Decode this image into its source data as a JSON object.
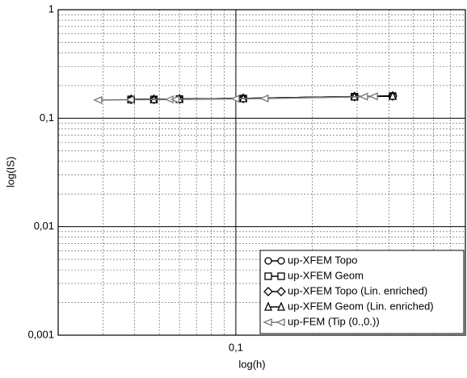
{
  "chart_data": {
    "type": "line",
    "x_label": "log(h)",
    "y_label": "log(IS)",
    "log_x": true,
    "log_y": true,
    "grid": true,
    "minor_grid": true,
    "legend": "lower right",
    "xlim": [
      0.02,
      0.8
    ],
    "ylim": [
      0.001,
      1
    ],
    "xticks": [
      {
        "value": 0.1,
        "label": "0,1"
      }
    ],
    "yticks": [
      {
        "value": 0.001,
        "label": "0,001"
      },
      {
        "value": 0.01,
        "label": "0,01"
      },
      {
        "value": 0.1,
        "label": "0,1"
      },
      1
    ],
    "series": [
      {
        "name": "up-XFEM Topo",
        "color": "#000000",
        "marker": "circle",
        "x": [
          0.0387,
          0.0476,
          0.06,
          0.107,
          0.293,
          0.414
        ],
        "values": [
          0.149,
          0.149,
          0.15,
          0.152,
          0.158,
          0.16
        ]
      },
      {
        "name": "up-XFEM Geom",
        "color": "#000000",
        "marker": "square",
        "x": [
          0.0387,
          0.0476,
          0.06,
          0.107,
          0.293,
          0.414
        ],
        "values": [
          0.149,
          0.149,
          0.15,
          0.152,
          0.158,
          0.16
        ]
      },
      {
        "name": "up-XFEM Topo (Lin. enriched)",
        "color": "#000000",
        "marker": "diamond",
        "x": [
          0.0387,
          0.0476,
          0.06,
          0.107,
          0.293,
          0.414
        ],
        "values": [
          0.149,
          0.149,
          0.15,
          0.152,
          0.158,
          0.16
        ]
      },
      {
        "name": "up-XFEM Geom (Lin. enriched)",
        "color": "#000000",
        "marker": "triangle",
        "x": [
          0.0387,
          0.0476,
          0.06,
          0.107,
          0.293,
          0.414
        ],
        "values": [
          0.149,
          0.149,
          0.15,
          0.152,
          0.158,
          0.16
        ]
      },
      {
        "name": "up-FEM (Tip (0.,0.))",
        "color": "#777777",
        "marker": "left",
        "x": [
          0.0288,
          0.0385,
          0.055,
          0.058,
          0.1,
          0.13,
          0.32,
          0.35
        ],
        "values": [
          0.147,
          0.148,
          0.149,
          0.149,
          0.151,
          0.152,
          0.158,
          0.159
        ]
      }
    ]
  }
}
